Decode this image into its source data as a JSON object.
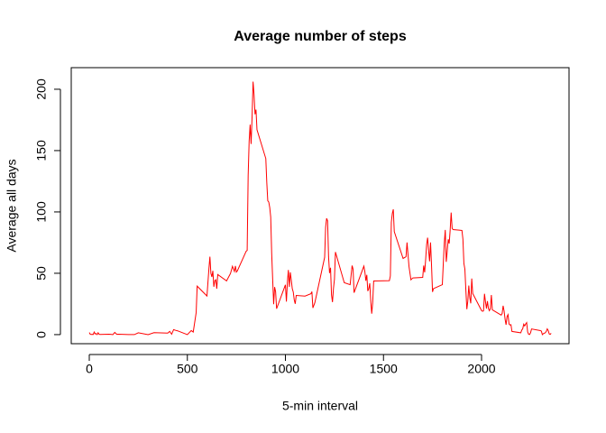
{
  "chart_data": {
    "type": "line",
    "title": "Average number of steps",
    "x_label": "5-min interval",
    "y_label": "Average all days",
    "x": [
      0,
      5,
      10,
      15,
      20,
      25,
      30,
      35,
      40,
      45,
      50,
      55,
      100,
      110,
      120,
      130,
      140,
      150,
      200,
      230,
      250,
      300,
      330,
      400,
      410,
      420,
      430,
      440,
      450,
      500,
      520,
      530,
      545,
      550,
      600,
      610,
      615,
      620,
      625,
      630,
      635,
      640,
      645,
      650,
      655,
      700,
      720,
      730,
      740,
      745,
      750,
      755,
      800,
      805,
      810,
      815,
      820,
      825,
      830,
      835,
      840,
      845,
      850,
      855,
      900,
      905,
      910,
      915,
      920,
      925,
      930,
      935,
      940,
      945,
      950,
      955,
      1000,
      1005,
      1010,
      1015,
      1020,
      1025,
      1030,
      1035,
      1040,
      1045,
      1050,
      1055,
      1100,
      1130,
      1135,
      1140,
      1150,
      1200,
      1205,
      1210,
      1215,
      1220,
      1225,
      1230,
      1235,
      1240,
      1245,
      1250,
      1255,
      1300,
      1330,
      1340,
      1345,
      1350,
      1400,
      1405,
      1410,
      1415,
      1420,
      1425,
      1430,
      1435,
      1440,
      1445,
      1450,
      1530,
      1535,
      1540,
      1545,
      1550,
      1555,
      1600,
      1615,
      1620,
      1630,
      1640,
      1645,
      1650,
      1700,
      1705,
      1710,
      1715,
      1720,
      1725,
      1730,
      1735,
      1740,
      1745,
      1750,
      1755,
      1800,
      1805,
      1810,
      1815,
      1820,
      1825,
      1830,
      1835,
      1840,
      1845,
      1850,
      1855,
      1900,
      1905,
      1910,
      1915,
      1920,
      1925,
      1930,
      1935,
      1940,
      1945,
      1950,
      1955,
      2000,
      2005,
      2010,
      2015,
      2020,
      2025,
      2030,
      2035,
      2040,
      2045,
      2050,
      2055,
      2100,
      2105,
      2110,
      2115,
      2120,
      2125,
      2130,
      2135,
      2140,
      2145,
      2150,
      2155,
      2200,
      2205,
      2210,
      2215,
      2220,
      2225,
      2230,
      2235,
      2240,
      2245,
      2250,
      2255,
      2300,
      2305,
      2310,
      2315,
      2320,
      2325,
      2330,
      2335,
      2340,
      2345,
      2350,
      2355
    ],
    "series": [
      {
        "name": "Average all days",
        "color": "#ff0000",
        "values": [
          1.7,
          0.3,
          0.1,
          0.2,
          0.1,
          2.1,
          0.5,
          0.9,
          0,
          1.5,
          0.3,
          0.1,
          0.3,
          0.2,
          0,
          1.8,
          0.2,
          0.3,
          0,
          0,
          1.5,
          0,
          1.6,
          1.2,
          2.6,
          0.3,
          4.1,
          3.5,
          3.1,
          0,
          3.3,
          2.1,
          18,
          39.5,
          31.5,
          53.8,
          63.5,
          50,
          47,
          52,
          39,
          44,
          44.7,
          37.4,
          49,
          43.8,
          49.9,
          55.7,
          51.5,
          56,
          51,
          52,
          68,
          68.6,
          129.4,
          157.5,
          171.2,
          155.4,
          177.3,
          206.2,
          195.9,
          179.6,
          183.4,
          167,
          143.5,
          124,
          109.1,
          108.1,
          103.7,
          95.9,
          66.2,
          45.2,
          24.8,
          38.8,
          35,
          21.1,
          40.6,
          26.9,
          42.4,
          52.7,
          38.9,
          50.8,
          44.3,
          37.4,
          34.7,
          28.3,
          25.1,
          31.9,
          31.4,
          33.3,
          35,
          21.8,
          26,
          63,
          87.6,
          94.8,
          92.8,
          63.4,
          50.2,
          54.5,
          32.4,
          26.5,
          37.7,
          45.1,
          67.3,
          42.3,
          40.7,
          56.3,
          53.3,
          34.2,
          55.8,
          51.4,
          43.9,
          48.7,
          35.5,
          37.5,
          41.8,
          27.5,
          17.1,
          26.1,
          43.7,
          44,
          47.8,
          91.6,
          98.7,
          102.1,
          83.96,
          62.1,
          63.5,
          75.1,
          55.6,
          44.7,
          45.5,
          46.2,
          46.6,
          56.3,
          50.7,
          61.2,
          73.4,
          79,
          68.9,
          59.7,
          75.1,
          56.5,
          34.8,
          37.5,
          40.7,
          58,
          74.7,
          85.3,
          59.3,
          67.8,
          77.7,
          74.2,
          85.3,
          99.5,
          86.6,
          85.6,
          84.9,
          77.8,
          58,
          53.4,
          36.3,
          20.7,
          27.4,
          40,
          30.2,
          25.5,
          45.7,
          33.5,
          19.6,
          19,
          19.3,
          33.3,
          26.8,
          21.2,
          27.3,
          21.3,
          19.5,
          21.3,
          32.3,
          20.2,
          15.9,
          17.2,
          23.5,
          19.2,
          12.5,
          8,
          14.7,
          16.3,
          8.7,
          7.8,
          8.1,
          2.6,
          1.5,
          3.7,
          4.8,
          8.5,
          7.1,
          8.7,
          9.8,
          2.2,
          0.3,
          0.1,
          1.6,
          4.6,
          3.3,
          2.8,
          0,
          0.8,
          1,
          1.6,
          2.6,
          4.7,
          3.3,
          0.6,
          0.2,
          1.1
        ]
      }
    ],
    "xlim": [
      -92,
      2446
    ],
    "ylim": [
      -7.4,
      217.6
    ],
    "xticks": [
      0,
      500,
      1000,
      1500,
      2000
    ],
    "yticks": [
      0,
      50,
      100,
      150,
      200
    ],
    "grid": false
  }
}
